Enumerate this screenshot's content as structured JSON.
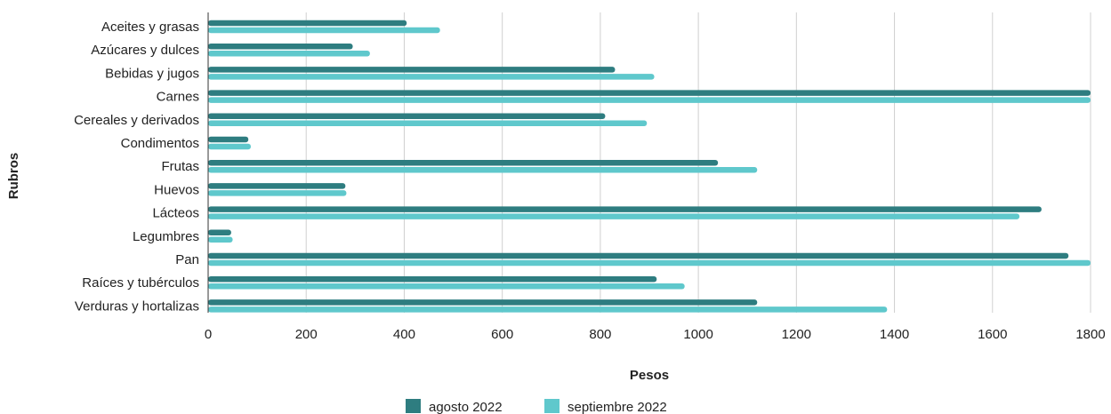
{
  "chart_data": {
    "type": "bar",
    "orientation": "horizontal",
    "categories": [
      "Aceites y grasas",
      "Azúcares y dulces",
      "Bebidas y jugos",
      "Carnes",
      "Cereales y derivados",
      "Condimentos",
      "Frutas",
      "Huevos",
      "Lácteos",
      "Legumbres",
      "Pan",
      "Raíces y tubérculos",
      "Verduras y hortalizas"
    ],
    "series": [
      {
        "name": "agosto 2022",
        "color": "#2e7d80",
        "values": [
          405,
          295,
          830,
          1800,
          810,
          82,
          1040,
          280,
          1700,
          47,
          1755,
          915,
          1120
        ]
      },
      {
        "name": "septiembre 2022",
        "color": "#5fc8cc",
        "values": [
          473,
          330,
          910,
          1800,
          895,
          87,
          1120,
          282,
          1655,
          50,
          1800,
          972,
          1385
        ]
      }
    ],
    "xlabel": "Pesos",
    "ylabel": "Rubros",
    "xlim": [
      0,
      1800
    ],
    "xticks": [
      0,
      200,
      400,
      600,
      800,
      1000,
      1200,
      1400,
      1600,
      1800
    ],
    "grid": true,
    "legend_position": "bottom"
  }
}
